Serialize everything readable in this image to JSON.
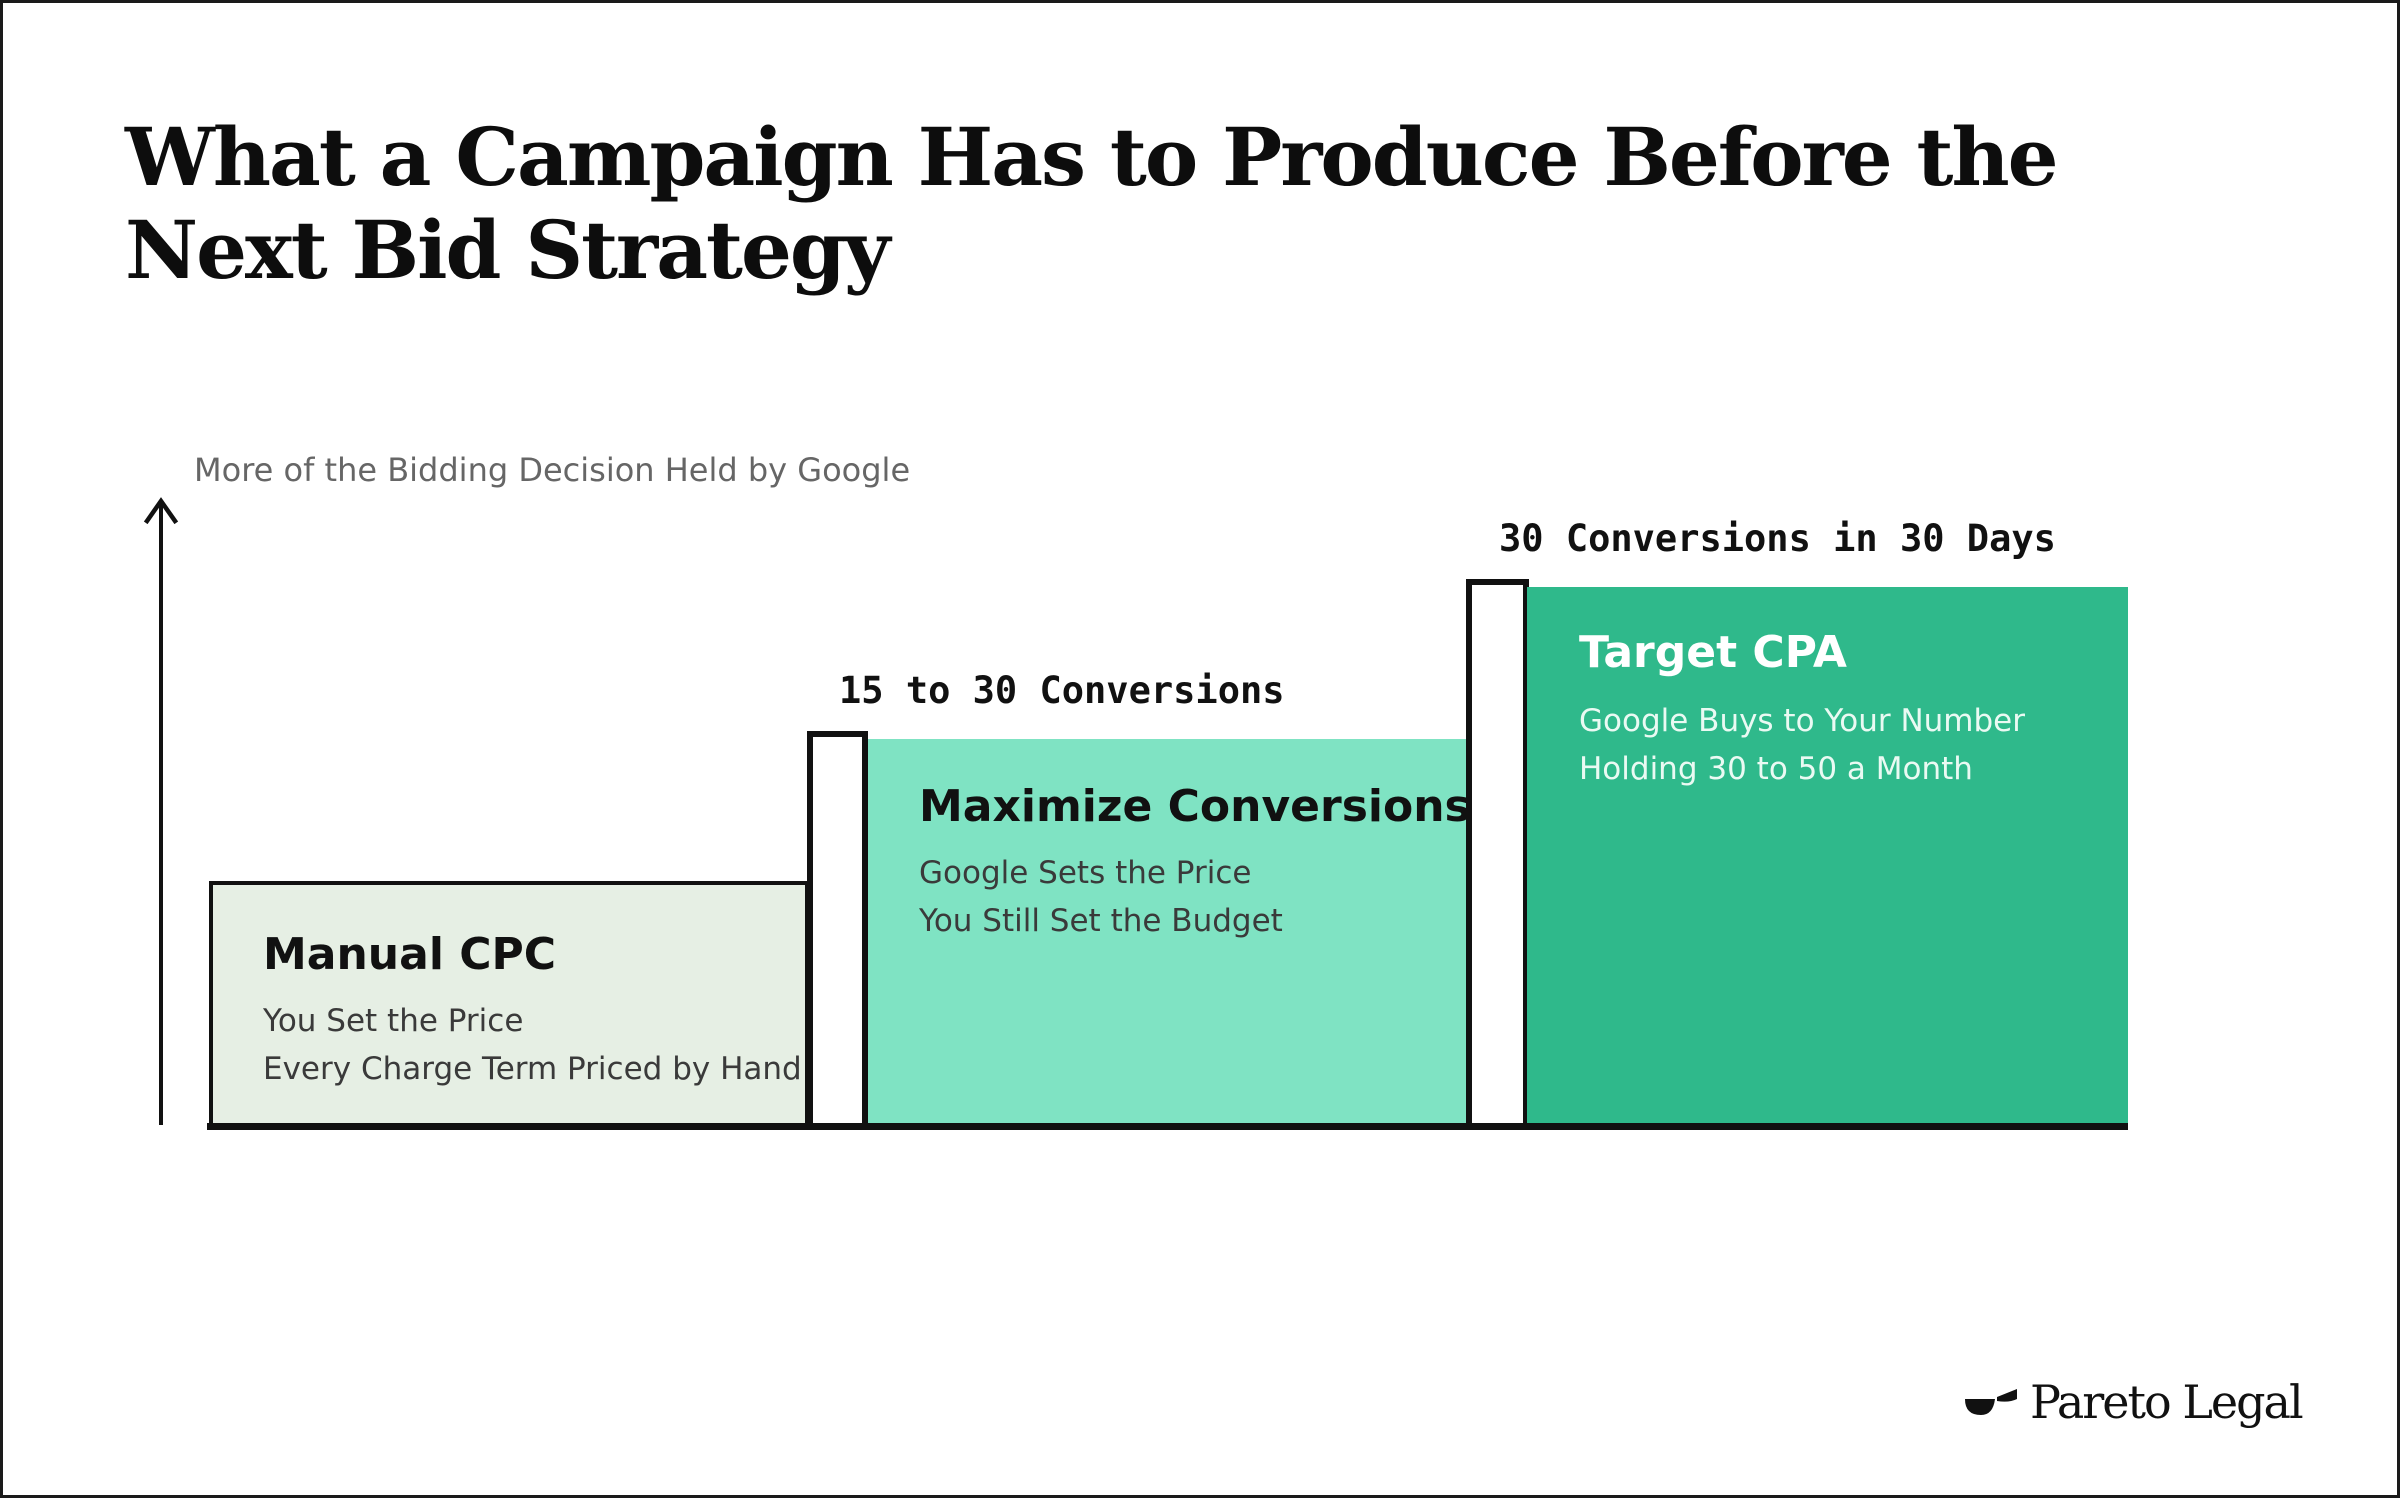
{
  "title": "What a Campaign Has to Produce Before the Next Bid Strategy",
  "axis": {
    "label": "More of the Bidding Decision Held by Google",
    "arrow_icon": "arrow-up-icon"
  },
  "stages": [
    {
      "name": "Manual CPC",
      "lines": [
        "You Set the Price",
        "Every Charge Term Priced by Hand"
      ],
      "color": "#e6efe4"
    },
    {
      "name": "Maximize Conversions",
      "lines": [
        "Google Sets the Price",
        "You Still Set the Budget"
      ],
      "color": "#7fe3c3"
    },
    {
      "name": "Target CPA",
      "lines": [
        "Google Buys to Your Number",
        "Holding 30 to 50 a Month"
      ],
      "color": "#2fb98b"
    }
  ],
  "thresholds": [
    "15 to 30 Conversions",
    "30 Conversions in 30 Days"
  ],
  "brand": {
    "name": "Pareto Legal",
    "logo_icon": "pareto-legal-logo-icon"
  }
}
